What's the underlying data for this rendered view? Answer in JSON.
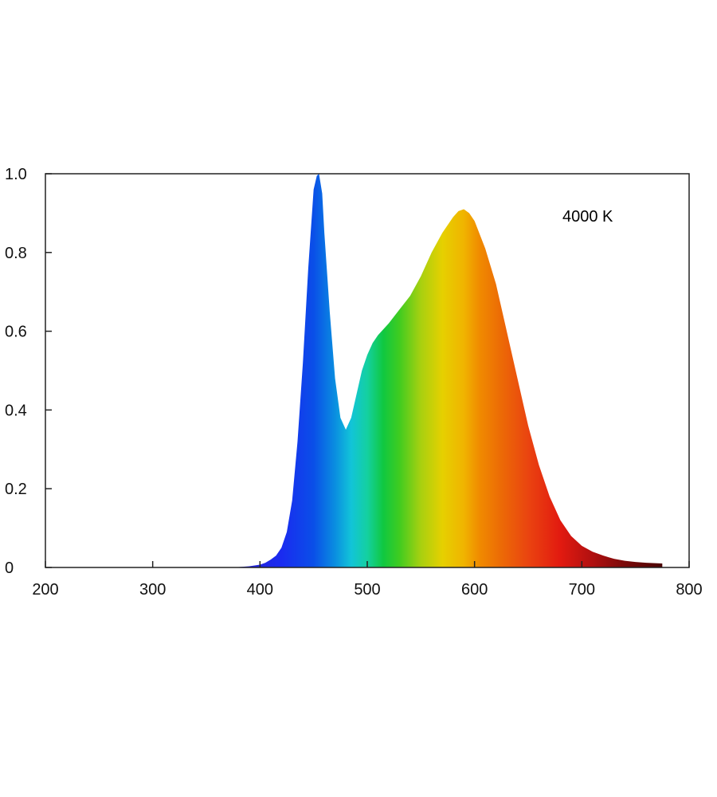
{
  "chart_data": {
    "type": "area",
    "title": "",
    "xlabel": "",
    "ylabel": "",
    "xlim": [
      200,
      800
    ],
    "ylim": [
      0,
      1.0
    ],
    "x_ticks": [
      "200",
      "300",
      "400",
      "500",
      "600",
      "700",
      "800"
    ],
    "y_ticks": [
      "0",
      "0.2",
      "0.4",
      "0.6",
      "0.8",
      "1.0"
    ],
    "annotation": "4000 K",
    "grid": false,
    "legend": "none",
    "fill": "spectral gradient by wavelength",
    "series": [
      {
        "x": [
          375,
          390,
          400,
          405,
          410,
          415,
          420,
          425,
          430,
          435,
          440,
          445,
          450,
          453,
          455,
          458,
          460,
          465,
          470,
          475,
          480,
          485,
          490,
          495,
          500,
          505,
          510,
          515,
          520,
          530,
          540,
          550,
          560,
          570,
          580,
          585,
          590,
          595,
          600,
          610,
          620,
          630,
          640,
          650,
          660,
          670,
          680,
          690,
          700,
          710,
          720,
          730,
          740,
          750,
          760,
          775
        ],
        "y": [
          0.0,
          0.003,
          0.007,
          0.012,
          0.02,
          0.03,
          0.05,
          0.09,
          0.17,
          0.32,
          0.52,
          0.76,
          0.96,
          0.995,
          1.0,
          0.95,
          0.85,
          0.65,
          0.48,
          0.38,
          0.35,
          0.38,
          0.44,
          0.5,
          0.54,
          0.57,
          0.59,
          0.605,
          0.62,
          0.655,
          0.69,
          0.74,
          0.8,
          0.85,
          0.89,
          0.905,
          0.91,
          0.9,
          0.88,
          0.81,
          0.72,
          0.6,
          0.48,
          0.36,
          0.26,
          0.18,
          0.12,
          0.08,
          0.055,
          0.04,
          0.03,
          0.022,
          0.017,
          0.014,
          0.012,
          0.01
        ]
      }
    ]
  }
}
